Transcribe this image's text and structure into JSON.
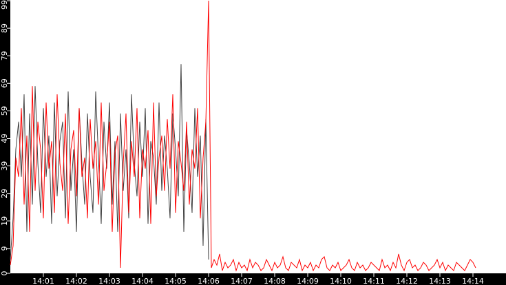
{
  "chart_data": {
    "type": "line",
    "title": "",
    "xlabel": "",
    "ylabel": "",
    "x_start": "14:00:00",
    "x_end": "14:15:00",
    "sample_interval_seconds": 5,
    "xlim": [
      "14:00",
      "14:15"
    ],
    "ylim": [
      0,
      99
    ],
    "x_ticks": [
      "14:01",
      "14:02",
      "14:03",
      "14:04",
      "14:05",
      "14:06",
      "14:07",
      "14:08",
      "14:09",
      "14:10",
      "14:11",
      "14:12",
      "14:13",
      "14:14"
    ],
    "y_ticks": [
      0,
      9,
      19,
      29,
      39,
      49,
      59,
      69,
      79,
      89,
      99
    ],
    "grid": false,
    "background": "#ffffff",
    "axis_background": "#000000",
    "series": [
      {
        "color": "#404040",
        "values": [
          5,
          20,
          45,
          55,
          35,
          65,
          15,
          58,
          25,
          68,
          40,
          22,
          60,
          35,
          50,
          18,
          62,
          28,
          48,
          55,
          20,
          66,
          30,
          45,
          15,
          60,
          40,
          25,
          58,
          35,
          22,
          66,
          42,
          18,
          55,
          38,
          62,
          25,
          48,
          15,
          58,
          30,
          45,
          20,
          65,
          40,
          28,
          55,
          35,
          60,
          18,
          48,
          42,
          25,
          62,
          30,
          50,
          38,
          20,
          58,
          45,
          28,
          76,
          15,
          52,
          40,
          22,
          60,
          35,
          50,
          10,
          56,
          5
        ]
      },
      {
        "color": "#ff0000",
        "values": [
          3,
          10,
          42,
          35,
          60,
          25,
          50,
          15,
          68,
          30,
          55,
          45,
          20,
          62,
          38,
          48,
          22,
          65,
          40,
          30,
          58,
          18,
          45,
          52,
          28,
          60,
          35,
          42,
          20,
          56,
          38,
          48,
          25,
          62,
          30,
          40,
          55,
          15,
          44,
          50,
          2,
          40,
          58,
          22,
          48,
          35,
          60,
          20,
          45,
          38,
          52,
          18,
          62,
          28,
          42,
          50,
          30,
          56,
          38,
          65,
          22,
          48,
          40,
          30,
          55,
          25,
          45,
          38,
          60,
          20,
          42,
          55,
          99,
          2,
          5,
          3,
          7,
          1,
          4,
          2,
          3,
          5,
          1,
          4,
          2,
          3,
          1,
          5,
          2,
          4,
          3,
          1,
          2,
          5,
          3,
          1,
          4,
          2,
          3,
          6,
          2,
          1,
          4,
          3,
          2,
          5,
          1,
          3,
          2,
          4,
          1,
          3,
          2,
          5,
          6,
          2,
          1,
          3,
          2,
          4,
          1,
          2,
          3,
          5,
          2,
          1,
          4,
          2,
          3,
          1,
          2,
          4,
          3,
          2,
          1,
          5,
          2,
          3,
          1,
          4,
          2,
          7,
          3,
          1,
          4,
          5,
          2,
          3,
          1,
          2,
          4,
          3,
          1,
          2,
          3,
          5,
          2,
          4,
          1,
          3,
          2,
          1,
          4,
          3,
          2,
          1,
          3,
          5,
          4,
          2
        ]
      }
    ]
  }
}
